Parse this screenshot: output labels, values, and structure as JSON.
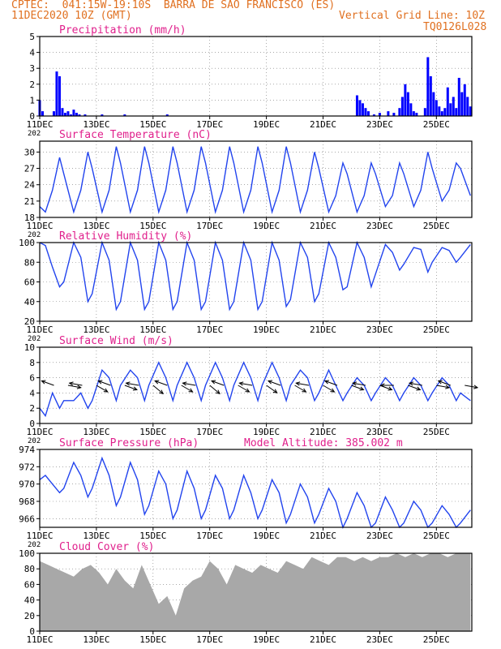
{
  "header": {
    "line1": "CPTEC:  041:15W-19:10S  BARRA DE SAO FRANCISCO (ES)",
    "line2": "11DEC2020 10Z (GMT)",
    "grid_note": "Vertical Grid Line: 10Z",
    "run_code": "TQ0126L028"
  },
  "colors": {
    "title": "#e0208c",
    "header": "#e07020",
    "series": "#2244ee",
    "bars": "#0000ff",
    "cloud": "#a8a8a8",
    "arrows": "#000000"
  },
  "x_axis": {
    "tick_labels": [
      "11DEC",
      "13DEC",
      "15DEC",
      "17DEC",
      "19DEC",
      "21DEC",
      "23DEC",
      "25DEC"
    ],
    "tick_days": [
      11,
      13,
      15,
      17,
      19,
      21,
      23,
      25
    ],
    "start_day": 11,
    "end_day": 26.25,
    "clipped_label": "202"
  },
  "chart_data": [
    {
      "id": "precip",
      "type": "bar",
      "title": "Precipitation (mm/h)",
      "ylim": [
        0,
        5
      ],
      "yticks": [
        0,
        1,
        2,
        3,
        4,
        5
      ],
      "grid": true,
      "x": [
        11.0,
        11.1,
        11.5,
        11.6,
        11.7,
        11.8,
        11.9,
        12.0,
        12.1,
        12.2,
        12.3,
        12.4,
        12.6,
        13.2,
        14.0,
        15.5,
        22.2,
        22.3,
        22.4,
        22.5,
        22.6,
        22.8,
        23.0,
        23.3,
        23.5,
        23.7,
        23.8,
        23.9,
        24.0,
        24.1,
        24.2,
        24.3,
        24.6,
        24.7,
        24.8,
        24.9,
        25.0,
        25.1,
        25.2,
        25.3,
        25.4,
        25.5,
        25.6,
        25.7,
        25.8,
        25.9,
        26.0,
        26.1,
        26.2
      ],
      "values": [
        1.0,
        0.3,
        0.3,
        2.8,
        2.5,
        0.5,
        0.2,
        0.3,
        0.1,
        0.4,
        0.2,
        0.1,
        0.1,
        0.1,
        0.1,
        0.1,
        1.3,
        1.0,
        0.8,
        0.5,
        0.3,
        0.1,
        0.2,
        0.3,
        0.2,
        0.5,
        1.2,
        2.0,
        1.5,
        0.8,
        0.3,
        0.2,
        0.5,
        3.7,
        2.5,
        1.5,
        1.0,
        0.6,
        0.3,
        0.5,
        1.8,
        0.8,
        1.2,
        0.5,
        2.4,
        1.5,
        2.0,
        1.2,
        0.6
      ]
    },
    {
      "id": "temp",
      "type": "line",
      "title": "Surface Temperature (nC)",
      "ylim": [
        18,
        32
      ],
      "yticks": [
        18,
        21,
        24,
        27,
        30
      ],
      "grid": true,
      "x": [
        11.0,
        11.2,
        11.45,
        11.7,
        11.85,
        12.2,
        12.45,
        12.7,
        12.85,
        13.2,
        13.45,
        13.7,
        13.85,
        14.2,
        14.45,
        14.7,
        14.85,
        15.2,
        15.45,
        15.7,
        15.85,
        16.2,
        16.45,
        16.7,
        16.85,
        17.2,
        17.45,
        17.7,
        17.85,
        18.2,
        18.45,
        18.7,
        18.85,
        19.2,
        19.45,
        19.7,
        19.85,
        20.2,
        20.45,
        20.7,
        20.85,
        21.2,
        21.45,
        21.7,
        21.85,
        22.2,
        22.45,
        22.7,
        22.85,
        23.2,
        23.45,
        23.7,
        23.85,
        24.2,
        24.45,
        24.7,
        24.85,
        25.2,
        25.45,
        25.7,
        25.85,
        26.2
      ],
      "values": [
        20,
        19,
        23,
        29,
        26,
        19,
        23,
        30,
        27,
        19,
        23,
        31,
        28,
        19,
        23,
        31,
        28,
        19,
        23,
        31,
        28,
        19,
        23,
        31,
        28,
        19,
        23,
        31,
        28,
        19,
        23,
        31,
        28,
        19,
        23,
        31,
        28,
        19,
        23,
        30,
        27,
        19,
        22,
        28,
        26,
        19,
        22,
        28,
        26,
        20,
        22,
        28,
        26,
        20,
        23,
        30,
        27,
        21,
        23,
        28,
        27,
        22
      ]
    },
    {
      "id": "rh",
      "type": "line",
      "title": "Relative Humidity (%)",
      "ylim": [
        20,
        100
      ],
      "yticks": [
        20,
        40,
        60,
        80,
        100
      ],
      "grid": true,
      "x": [
        11.0,
        11.2,
        11.45,
        11.7,
        11.85,
        12.2,
        12.45,
        12.7,
        12.85,
        13.2,
        13.45,
        13.7,
        13.85,
        14.2,
        14.45,
        14.7,
        14.85,
        15.2,
        15.45,
        15.7,
        15.85,
        16.2,
        16.45,
        16.7,
        16.85,
        17.2,
        17.45,
        17.7,
        17.85,
        18.2,
        18.45,
        18.7,
        18.85,
        19.2,
        19.45,
        19.7,
        19.85,
        20.2,
        20.45,
        20.7,
        20.85,
        21.2,
        21.45,
        21.7,
        21.85,
        22.2,
        22.45,
        22.7,
        22.85,
        23.2,
        23.45,
        23.7,
        23.85,
        24.2,
        24.45,
        24.7,
        24.85,
        25.2,
        25.45,
        25.7,
        25.85,
        26.2
      ],
      "values": [
        100,
        97,
        75,
        55,
        60,
        100,
        85,
        40,
        48,
        100,
        82,
        32,
        40,
        100,
        82,
        32,
        40,
        100,
        82,
        32,
        40,
        100,
        82,
        32,
        40,
        100,
        82,
        32,
        40,
        100,
        82,
        32,
        40,
        100,
        82,
        35,
        42,
        100,
        85,
        40,
        48,
        100,
        85,
        52,
        55,
        100,
        85,
        55,
        68,
        98,
        90,
        72,
        78,
        95,
        93,
        70,
        80,
        95,
        92,
        80,
        85,
        98
      ]
    },
    {
      "id": "wind",
      "type": "line",
      "title": "Surface Wind (m/s)",
      "ylim": [
        0,
        10
      ],
      "yticks": [
        0,
        2,
        4,
        6,
        8,
        10
      ],
      "grid": true,
      "x": [
        11.0,
        11.2,
        11.45,
        11.7,
        11.85,
        12.2,
        12.45,
        12.7,
        12.85,
        13.2,
        13.45,
        13.7,
        13.85,
        14.2,
        14.45,
        14.7,
        14.85,
        15.2,
        15.45,
        15.7,
        15.85,
        16.2,
        16.45,
        16.7,
        16.85,
        17.2,
        17.45,
        17.7,
        17.85,
        18.2,
        18.45,
        18.7,
        18.85,
        19.2,
        19.45,
        19.7,
        19.85,
        20.2,
        20.45,
        20.7,
        20.85,
        21.2,
        21.45,
        21.7,
        21.85,
        22.2,
        22.45,
        22.7,
        22.85,
        23.2,
        23.45,
        23.7,
        23.85,
        24.2,
        24.45,
        24.7,
        24.85,
        25.2,
        25.45,
        25.7,
        25.85,
        26.2
      ],
      "values": [
        2,
        1,
        4,
        2,
        3,
        3,
        4,
        2,
        3,
        7,
        6,
        3,
        5,
        7,
        6,
        3,
        5,
        8,
        6,
        3,
        5,
        8,
        6,
        3,
        5,
        8,
        6,
        3,
        5,
        8,
        6,
        3,
        5,
        8,
        6,
        3,
        5,
        7,
        6,
        3,
        4,
        7,
        5,
        3,
        4,
        6,
        5,
        3,
        4,
        6,
        5,
        3,
        4,
        6,
        5,
        3,
        4,
        6,
        5,
        3,
        4,
        3
      ],
      "arrows_x": [
        11.5,
        12.0,
        12.5,
        13.0,
        13.5,
        14.0,
        14.5,
        15.0,
        15.5,
        16.0,
        16.5,
        17.0,
        17.5,
        18.0,
        18.5,
        19.0,
        19.5,
        20.0,
        20.5,
        21.0,
        21.5,
        22.0,
        22.5,
        23.0,
        23.5,
        24.0,
        24.5,
        25.0,
        25.5,
        26.0
      ],
      "arrows_deg": [
        200,
        10,
        190,
        30,
        200,
        20,
        190,
        40,
        200,
        30,
        190,
        40,
        200,
        30,
        190,
        35,
        200,
        30,
        190,
        30,
        200,
        20,
        190,
        20,
        180,
        20,
        190,
        10,
        200,
        10
      ]
    },
    {
      "id": "pressure",
      "type": "line",
      "title": "Surface Pressure (hPa)",
      "annotation": "Model Altitude: 385.002 m",
      "ylim": [
        965,
        974
      ],
      "yticks": [
        966,
        968,
        970,
        972,
        974
      ],
      "grid": true,
      "x": [
        11.0,
        11.2,
        11.45,
        11.7,
        11.85,
        12.2,
        12.45,
        12.7,
        12.85,
        13.2,
        13.45,
        13.7,
        13.85,
        14.2,
        14.45,
        14.7,
        14.85,
        15.2,
        15.45,
        15.7,
        15.85,
        16.2,
        16.45,
        16.7,
        16.85,
        17.2,
        17.45,
        17.7,
        17.85,
        18.2,
        18.45,
        18.7,
        18.85,
        19.2,
        19.45,
        19.7,
        19.85,
        20.2,
        20.45,
        20.7,
        20.85,
        21.2,
        21.45,
        21.7,
        21.85,
        22.2,
        22.45,
        22.7,
        22.85,
        23.2,
        23.45,
        23.7,
        23.85,
        24.2,
        24.45,
        24.7,
        24.85,
        25.2,
        25.45,
        25.7,
        25.85,
        26.2
      ],
      "values": [
        970.5,
        971,
        970,
        969,
        969.5,
        972.5,
        971,
        968.5,
        969.5,
        973,
        971,
        967.5,
        968.5,
        972.5,
        970.5,
        966.5,
        967.5,
        971.5,
        970,
        966,
        967,
        971.5,
        969.5,
        966,
        967,
        971,
        969.5,
        966,
        967,
        971,
        969,
        966,
        967,
        970.5,
        969,
        965.5,
        966.5,
        970,
        968.5,
        965.5,
        966.5,
        969.5,
        968,
        965,
        966,
        969,
        967.5,
        965,
        965.5,
        968.5,
        967,
        965,
        965.5,
        968,
        967,
        965,
        965.5,
        967.5,
        966.5,
        965,
        965.5,
        967
      ]
    },
    {
      "id": "cloud",
      "type": "area",
      "title": "Cloud Cover (%)",
      "ylim": [
        0,
        100
      ],
      "yticks": [
        0,
        20,
        40,
        60,
        80,
        100
      ],
      "grid": true,
      "x": [
        11.0,
        11.3,
        11.6,
        11.9,
        12.2,
        12.5,
        12.8,
        13.1,
        13.4,
        13.7,
        14.0,
        14.3,
        14.6,
        14.9,
        15.2,
        15.5,
        15.8,
        16.1,
        16.4,
        16.7,
        17.0,
        17.3,
        17.6,
        17.9,
        18.2,
        18.5,
        18.8,
        19.1,
        19.4,
        19.7,
        20.0,
        20.3,
        20.6,
        20.9,
        21.2,
        21.5,
        21.8,
        22.1,
        22.4,
        22.7,
        23.0,
        23.3,
        23.6,
        23.9,
        24.2,
        24.5,
        24.8,
        25.1,
        25.4,
        25.7,
        26.0,
        26.2
      ],
      "values": [
        90,
        85,
        80,
        75,
        70,
        80,
        85,
        75,
        60,
        80,
        65,
        55,
        85,
        60,
        35,
        45,
        20,
        55,
        65,
        70,
        90,
        80,
        60,
        85,
        80,
        75,
        85,
        80,
        75,
        90,
        85,
        80,
        95,
        90,
        85,
        95,
        95,
        90,
        95,
        90,
        95,
        95,
        100,
        95,
        100,
        95,
        100,
        100,
        95,
        100,
        100,
        100
      ]
    }
  ]
}
